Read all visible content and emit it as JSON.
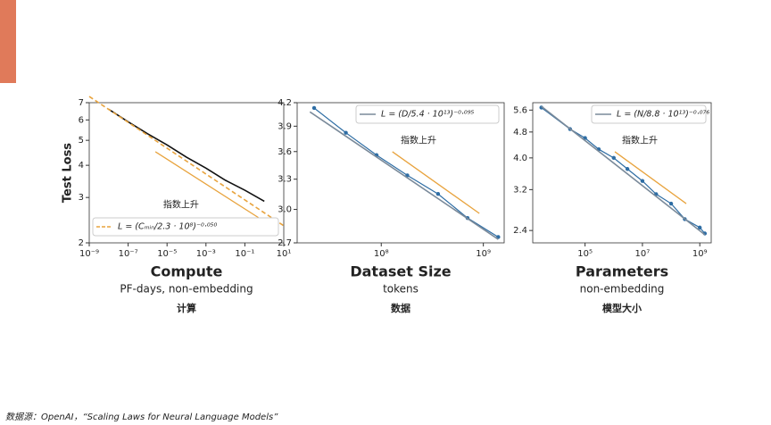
{
  "chart_data": [
    {
      "type": "line",
      "title": "Compute",
      "subtitle": "PF-days, non-embedding",
      "caption": "计算",
      "ylabel": "Test Loss",
      "annotation": "指数上升",
      "xscale": "log",
      "yscale": "log",
      "legend": "lower left",
      "xlim": [
        1e-09,
        10
      ],
      "xticks": [
        {
          "value": 1e-09,
          "label": "10⁻⁹"
        },
        {
          "value": 1e-07,
          "label": "10⁻⁷"
        },
        {
          "value": 1e-05,
          "label": "10⁻⁵"
        },
        {
          "value": 0.001,
          "label": "10⁻³"
        },
        {
          "value": 0.1,
          "label": "10⁻¹"
        },
        {
          "value": 10,
          "label": "10¹"
        }
      ],
      "ylim": [
        2,
        7
      ],
      "yticks": [
        2,
        3,
        4,
        5,
        6,
        7
      ],
      "series": [
        {
          "color": "#111111",
          "marker": false,
          "dashed": false,
          "x": [
            1e-08,
            1e-07,
            1e-06,
            1e-05,
            0.0001,
            0.001,
            0.01,
            0.1,
            1
          ],
          "values": [
            6.6,
            5.9,
            5.3,
            4.8,
            4.3,
            3.9,
            3.5,
            3.2,
            2.9
          ]
        },
        {
          "name": "L = (Cₘᵢₙ/2.3 · 10⁸)⁻⁰·⁰⁵⁰",
          "color": "#e8a33d",
          "marker": false,
          "dashed": true,
          "x": [
            1e-09,
            10
          ],
          "values": [
            7.4,
            2.33
          ]
        }
      ]
    },
    {
      "type": "line",
      "title": "Dataset Size",
      "subtitle": "tokens",
      "caption": "数据",
      "annotation": "指数上升",
      "xscale": "log",
      "yscale": "log",
      "legend": "upper right",
      "xlim": [
        15000000,
        1600000000
      ],
      "xticks": [
        {
          "value": 100000000,
          "label": "10⁸"
        },
        {
          "value": 1000000000,
          "label": "10⁹"
        }
      ],
      "ylim": [
        2.7,
        4.2
      ],
      "yticks": [
        2.7,
        {
          "value": 3,
          "label": "3.0"
        },
        3.3,
        3.6,
        3.9,
        4.2
      ],
      "series": [
        {
          "color": "#2e6da4",
          "marker": true,
          "dashed": false,
          "x": [
            22000000,
            45000000,
            90000000,
            180000000,
            360000000,
            700000000,
            1400000000
          ],
          "values": [
            4.13,
            3.82,
            3.56,
            3.34,
            3.15,
            2.92,
            2.75
          ]
        },
        {
          "name": "L = (D/5.4 · 10¹³)⁻⁰·⁰⁹⁵",
          "color": "#7a8a9a",
          "marker": false,
          "dashed": false,
          "x": [
            20000000,
            1400000000
          ],
          "values": [
            4.08,
            2.73
          ]
        }
      ]
    },
    {
      "type": "line",
      "title": "Parameters",
      "subtitle": "non-embedding",
      "caption": "模型大小",
      "annotation": "指数上升",
      "xscale": "log",
      "yscale": "log",
      "legend": "upper right",
      "xlim": [
        1500,
        2500000000
      ],
      "xticks": [
        {
          "value": 100000,
          "label": "10⁵"
        },
        {
          "value": 10000000,
          "label": "10⁷"
        },
        {
          "value": 1000000000,
          "label": "10⁹"
        }
      ],
      "ylim": [
        2.2,
        5.9
      ],
      "yticks": [
        2.4,
        3.2,
        {
          "value": 4,
          "label": "4.0"
        },
        4.8,
        5.6
      ],
      "series": [
        {
          "color": "#2e6da4",
          "marker": true,
          "dashed": false,
          "x": [
            3000,
            30000,
            100000,
            300000,
            1000000,
            3000000,
            10000000,
            30000000,
            100000000,
            300000000,
            1000000000,
            1500000000
          ],
          "values": [
            5.7,
            4.9,
            4.6,
            4.25,
            4.0,
            3.7,
            3.4,
            3.1,
            2.9,
            2.6,
            2.45,
            2.35
          ]
        },
        {
          "name": "L = (N/8.8 · 10¹³)⁻⁰·⁰⁷⁶",
          "color": "#7a8a9a",
          "marker": false,
          "dashed": false,
          "x": [
            3000,
            1500000000
          ],
          "values": [
            5.75,
            2.33
          ]
        }
      ]
    }
  ],
  "source": "数据源：OpenAI，“Scaling Laws for Neural Language Models”"
}
